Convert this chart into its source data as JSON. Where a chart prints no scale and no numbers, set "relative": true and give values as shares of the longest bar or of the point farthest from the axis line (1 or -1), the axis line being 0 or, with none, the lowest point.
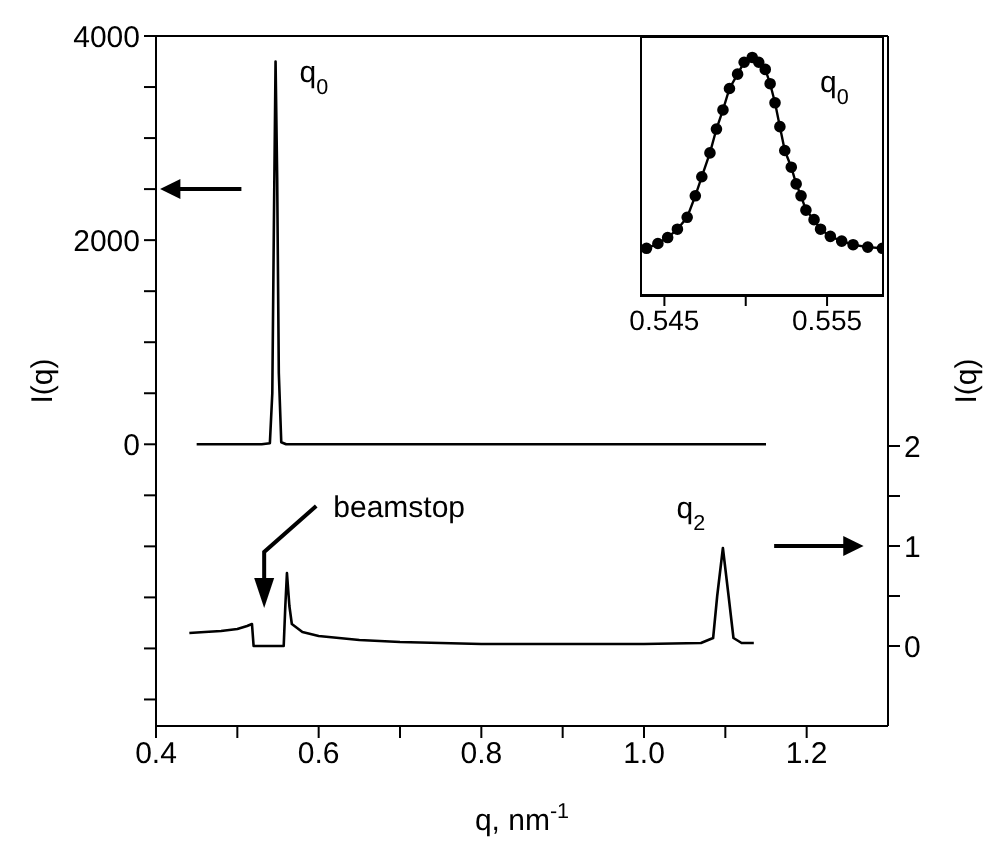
{
  "chart_data": [
    {
      "type": "line",
      "xlabel": "q, nm$^{-1}$",
      "ylabel": "I(q)",
      "y2label": "I(q)",
      "xlim": [
        0.4,
        1.3
      ],
      "xticks": [
        0.4,
        {
          "value": 0.5,
          "label": null
        },
        0.6,
        {
          "value": 0.7,
          "label": null
        },
        0.8,
        {
          "value": 0.9,
          "label": null
        },
        {
          "value": 1.0,
          "label": "1.0"
        },
        {
          "value": 1.1,
          "label": null
        },
        1.2
      ],
      "ylim": [
        -2760,
        4000
      ],
      "yticks": [
        {
          "value": -2500,
          "label": null
        },
        {
          "value": -2000,
          "label": null
        },
        {
          "value": -1500,
          "label": null
        },
        {
          "value": -1000,
          "label": null
        },
        {
          "value": -500,
          "label": null
        },
        0,
        {
          "value": 500,
          "label": null
        },
        {
          "value": 1000,
          "label": null
        },
        {
          "value": 1500,
          "label": null
        },
        2000,
        {
          "value": 2500,
          "label": null
        },
        {
          "value": 3000,
          "label": null
        },
        {
          "value": 3500,
          "label": null
        },
        4000
      ],
      "y2lim": [
        -0.8,
        6.1
      ],
      "y2ticks": [
        0,
        {
          "value": 0.5,
          "label": null
        },
        1,
        {
          "value": 1.5,
          "label": null
        },
        2
      ],
      "series": [
        {
          "color": "#000000",
          "x": [
            0.45,
            0.53,
            0.54,
            0.543,
            0.545,
            0.547,
            0.549,
            0.551,
            0.554,
            0.56,
            1.15
          ],
          "values": [
            0,
            0,
            10,
            500,
            2200,
            3750,
            2600,
            700,
            20,
            0,
            0
          ]
        },
        {
          "color": "#000000",
          "axis": "y2",
          "x": [
            0.441,
            0.46,
            0.48,
            0.5,
            0.512,
            0.518,
            0.52,
            0.557,
            0.559,
            0.561,
            0.564,
            0.567,
            0.58,
            0.6,
            0.65,
            0.7,
            0.8,
            0.9,
            1.0,
            1.07,
            1.085,
            1.09,
            1.097,
            1.104,
            1.11,
            1.12,
            1.135
          ],
          "values": [
            0.13,
            0.14,
            0.15,
            0.17,
            0.2,
            0.22,
            0.0,
            0.0,
            0.4,
            0.73,
            0.4,
            0.22,
            0.14,
            0.1,
            0.06,
            0.04,
            0.02,
            0.02,
            0.02,
            0.03,
            0.08,
            0.5,
            0.98,
            0.5,
            0.08,
            0.03,
            0.03
          ]
        }
      ],
      "annotations": [
        {
          "text": "q$_{0}$",
          "x": 0.547,
          "y": 3750
        },
        "beamstop",
        {
          "text": "q$_{2}$",
          "x": 1.097,
          "y": -1000
        }
      ]
    },
    {
      "type": "line",
      "relative": true,
      "marker": "circle",
      "xlim": [
        0.5435,
        0.5585
      ],
      "xticks": [
        0.545,
        {
          "value": 0.55,
          "label": null
        },
        0.555
      ],
      "series": [
        {
          "color": "#000000",
          "x": [
            0.5439,
            0.5446,
            0.5452,
            0.5458,
            0.5464,
            0.5469,
            0.5473,
            0.5478,
            0.5482,
            0.5486,
            0.549,
            0.5495,
            0.5499,
            0.5504,
            0.5508,
            0.5512,
            0.5515,
            0.5518,
            0.5521,
            0.5524,
            0.5528,
            0.5531,
            0.5534,
            0.5537,
            0.5542,
            0.5546,
            0.5552,
            0.5559,
            0.5566,
            0.5575,
            0.5584
          ],
          "values": [
            0.2,
            0.22,
            0.245,
            0.28,
            0.33,
            0.42,
            0.5,
            0.6,
            0.7,
            0.78,
            0.87,
            0.93,
            0.98,
            1,
            0.98,
            0.95,
            0.89,
            0.81,
            0.71,
            0.61,
            0.54,
            0.47,
            0.42,
            0.36,
            0.32,
            0.28,
            0.25,
            0.23,
            0.215,
            0.205,
            0.2
          ]
        }
      ],
      "annotations": [
        "q$_{0}$"
      ]
    }
  ]
}
